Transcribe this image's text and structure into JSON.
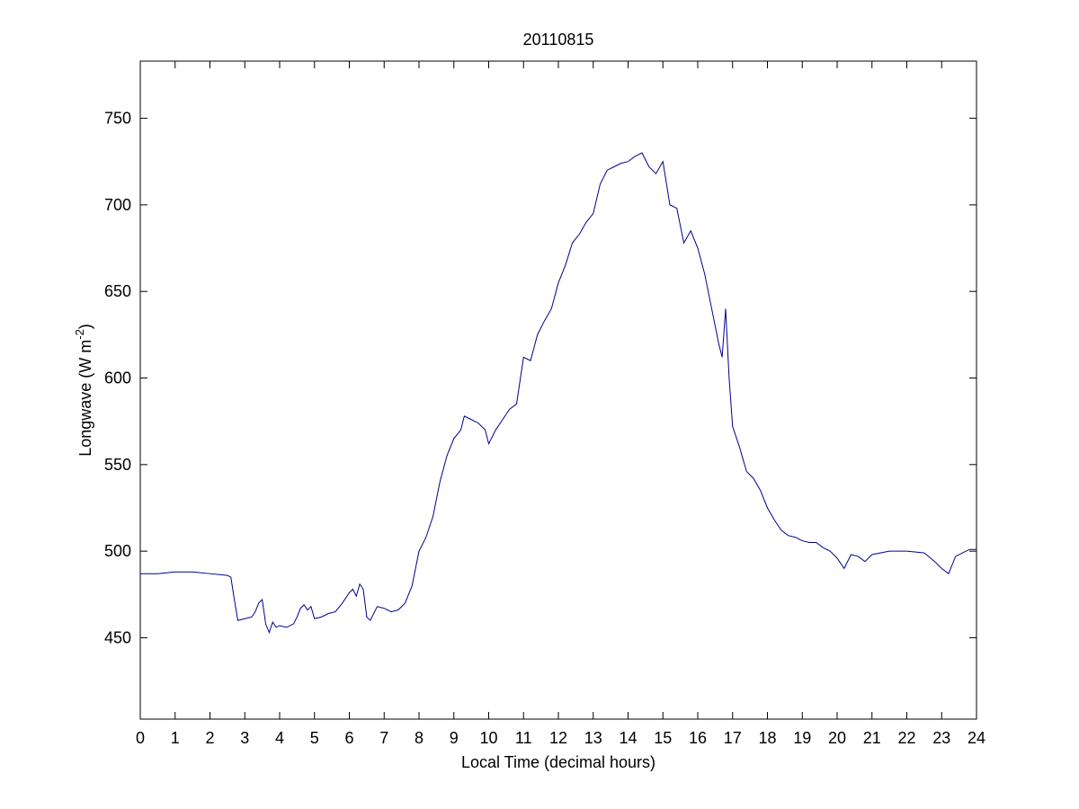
{
  "chart_data": {
    "type": "line",
    "title": "20110815",
    "xlabel": "Local Time (decimal hours)",
    "ylabel": {
      "text": "Longwave (W m",
      "superscript": "-2",
      "suffix": ")"
    },
    "x": [
      0,
      0.5,
      1,
      1.5,
      2,
      2.5,
      2.6,
      2.7,
      2.8,
      3.0,
      3.2,
      3.3,
      3.4,
      3.5,
      3.6,
      3.7,
      3.8,
      3.9,
      4.0,
      4.2,
      4.4,
      4.5,
      4.6,
      4.7,
      4.8,
      4.9,
      5.0,
      5.2,
      5.4,
      5.6,
      5.8,
      6.0,
      6.1,
      6.2,
      6.3,
      6.4,
      6.5,
      6.6,
      6.8,
      7.0,
      7.2,
      7.4,
      7.6,
      7.8,
      8.0,
      8.2,
      8.4,
      8.6,
      8.8,
      9.0,
      9.2,
      9.3,
      9.5,
      9.7,
      9.9,
      10.0,
      10.2,
      10.4,
      10.6,
      10.8,
      11.0,
      11.2,
      11.4,
      11.6,
      11.8,
      12.0,
      12.2,
      12.4,
      12.6,
      12.8,
      13.0,
      13.2,
      13.4,
      13.6,
      13.8,
      14.0,
      14.2,
      14.4,
      14.6,
      14.8,
      15.0,
      15.2,
      15.4,
      15.6,
      15.8,
      16.0,
      16.2,
      16.4,
      16.6,
      16.7,
      16.8,
      16.9,
      17.0,
      17.2,
      17.4,
      17.6,
      17.8,
      18.0,
      18.2,
      18.4,
      18.6,
      18.8,
      19.0,
      19.2,
      19.4,
      19.6,
      19.8,
      20.0,
      20.2,
      20.4,
      20.6,
      20.8,
      21.0,
      21.5,
      22.0,
      22.5,
      22.8,
      23.0,
      23.2,
      23.4,
      23.6,
      23.8,
      24.0
    ],
    "series": [
      {
        "name": "Longwave",
        "color": "#00008b",
        "values": [
          487,
          487,
          488,
          488,
          487,
          486,
          485,
          472,
          460,
          461,
          462,
          465,
          470,
          472,
          458,
          453,
          459,
          456,
          457,
          456,
          458,
          462,
          467,
          469,
          466,
          468,
          461,
          462,
          464,
          465,
          470,
          476,
          478,
          474,
          481,
          478,
          462,
          460,
          468,
          467,
          465,
          466,
          470,
          480,
          500,
          508,
          520,
          540,
          555,
          565,
          570,
          578,
          576,
          574,
          570,
          562,
          570,
          576,
          582,
          585,
          612,
          610,
          625,
          633,
          640,
          655,
          665,
          678,
          683,
          690,
          695,
          712,
          720,
          722,
          724,
          725,
          728,
          730,
          722,
          718,
          725,
          700,
          698,
          678,
          685,
          675,
          660,
          640,
          620,
          612,
          640,
          600,
          572,
          560,
          546,
          542,
          535,
          525,
          518,
          512,
          509,
          508,
          506,
          505,
          505,
          502,
          500,
          496,
          490,
          498,
          497,
          494,
          498,
          500,
          500,
          499,
          494,
          490,
          487,
          497,
          499,
          501,
          501
        ]
      }
    ],
    "xlim": [
      0,
      24
    ],
    "xticks": [
      0,
      1,
      2,
      3,
      4,
      5,
      6,
      7,
      8,
      9,
      10,
      11,
      12,
      13,
      14,
      15,
      16,
      17,
      18,
      19,
      20,
      21,
      22,
      23,
      24
    ],
    "ylim": [
      403,
      783
    ],
    "yticks": [
      450,
      500,
      550,
      600,
      650,
      700,
      750
    ],
    "grid": false
  }
}
